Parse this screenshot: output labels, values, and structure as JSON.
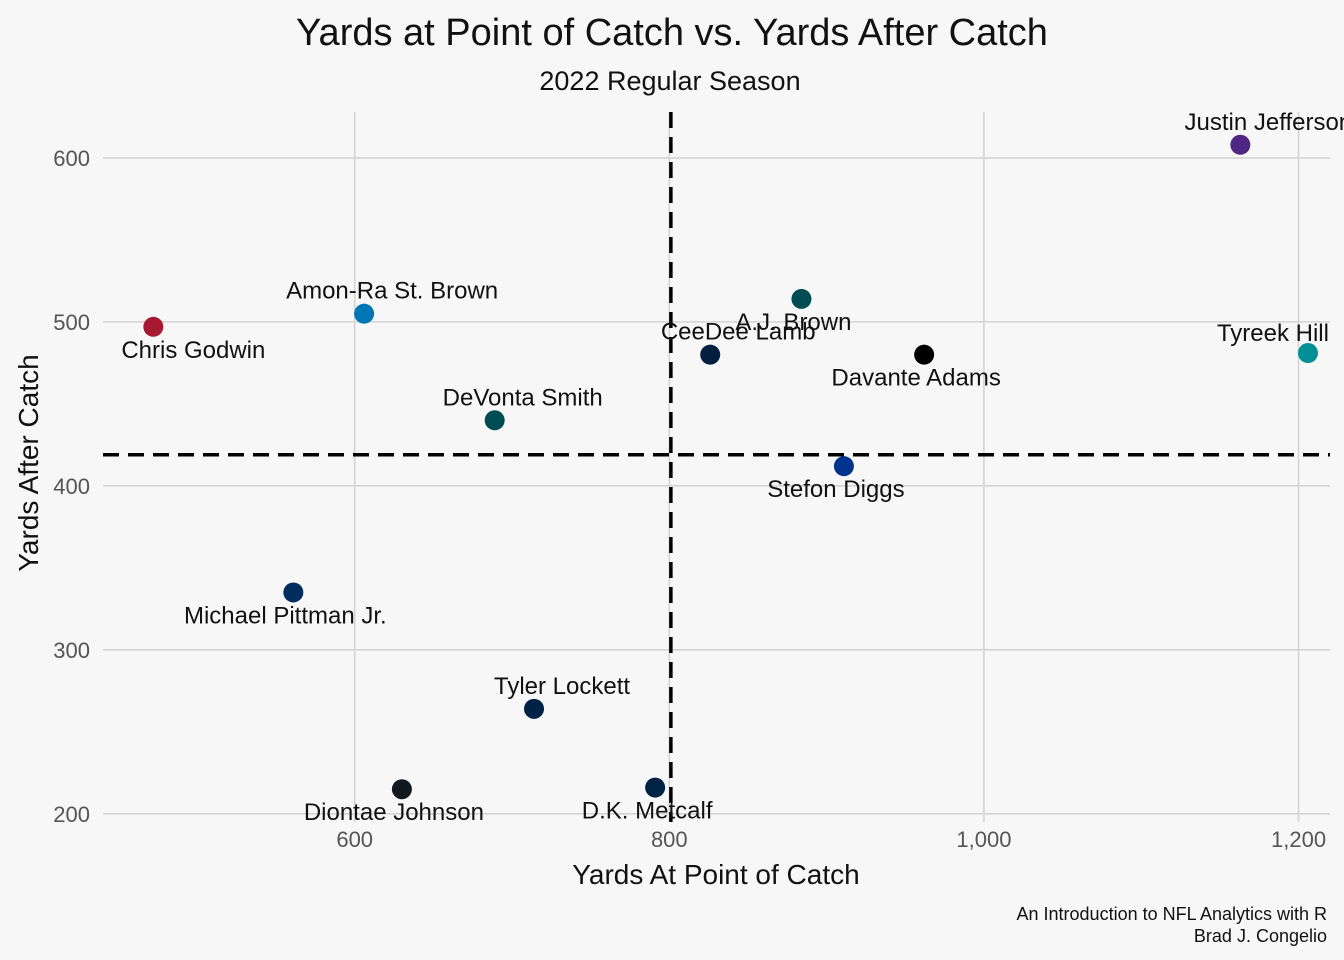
{
  "chart_data": {
    "type": "scatter",
    "title": "Yards at Point of Catch vs. Yards After Catch",
    "subtitle": "2022 Regular Season",
    "xlabel": "Yards At Point of Catch",
    "ylabel": "Yards After Catch",
    "xlim": [
      440,
      1220
    ],
    "ylim": [
      195,
      628
    ],
    "x_ticks": [
      600,
      800,
      1000,
      1200
    ],
    "x_tick_labels": [
      "600",
      "800",
      "1,000",
      "1,200"
    ],
    "y_ticks": [
      200,
      300,
      400,
      500,
      600
    ],
    "y_tick_labels": [
      "200",
      "300",
      "400",
      "500",
      "600"
    ],
    "grid": true,
    "vline_x": 801,
    "hline_y": 419,
    "points": [
      {
        "label": "Justin Jefferson",
        "x": 1163,
        "y": 608,
        "color": "#4F2683",
        "label_pos": "above-right"
      },
      {
        "label": "Tyreek Hill",
        "x": 1206,
        "y": 481,
        "color": "#008E97",
        "label_pos": "above-left"
      },
      {
        "label": "A.J. Brown",
        "x": 884,
        "y": 514,
        "color": "#004C54",
        "label_pos": "below-left"
      },
      {
        "label": "CeeDee Lamb",
        "x": 826,
        "y": 480,
        "color": "#041E42",
        "label_pos": "above-right"
      },
      {
        "label": "Davante Adams",
        "x": 962,
        "y": 480,
        "color": "#000000",
        "label_pos": "below-left"
      },
      {
        "label": "Stefon Diggs",
        "x": 911,
        "y": 412,
        "color": "#00338D",
        "label_pos": "below-left"
      },
      {
        "label": "Amon-Ra St. Brown",
        "x": 606,
        "y": 505,
        "color": "#0076B6",
        "label_pos": "above-right"
      },
      {
        "label": "Chris Godwin",
        "x": 472,
        "y": 497,
        "color": "#A71930",
        "label_pos": "below-right"
      },
      {
        "label": "DeVonta Smith",
        "x": 689,
        "y": 440,
        "color": "#004C54",
        "label_pos": "above-right"
      },
      {
        "label": "Michael Pittman Jr.",
        "x": 561,
        "y": 335,
        "color": "#002C5F",
        "label_pos": "below-left"
      },
      {
        "label": "Tyler Lockett",
        "x": 714,
        "y": 264,
        "color": "#002244",
        "label_pos": "above-right"
      },
      {
        "label": "Diontae Johnson",
        "x": 630,
        "y": 215,
        "color": "#101820",
        "label_pos": "below-left"
      },
      {
        "label": "D.K. Metcalf",
        "x": 791,
        "y": 216,
        "color": "#002244",
        "label_pos": "below-left"
      }
    ],
    "caption_lines": [
      "An Introduction to NFL Analytics with R",
      "Brad J. Congelio"
    ]
  }
}
